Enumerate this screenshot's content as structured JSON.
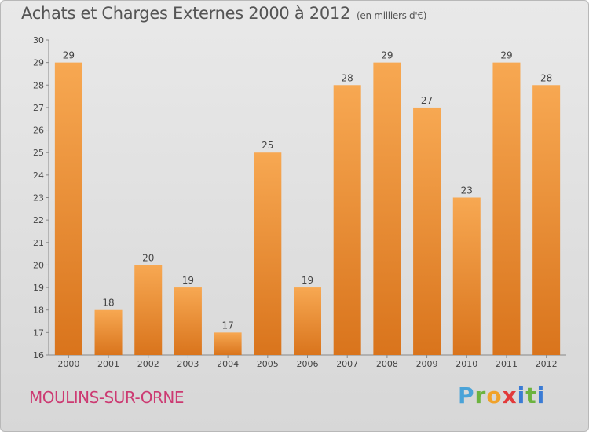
{
  "header": {
    "title": "Achats et Charges Externes 2000 à 2012",
    "unit": "(en milliers d'€)"
  },
  "footer": {
    "commune": "MOULINS-SUR-ORNE",
    "logo": [
      "P",
      "r",
      "o",
      "x",
      "i",
      "t",
      "i"
    ]
  },
  "colors": {
    "bar_top": "#f7a852",
    "bar_bottom": "#d9741c",
    "commune": "#cc3a72"
  },
  "chart_data": {
    "type": "bar",
    "title": "Achats et Charges Externes 2000 à 2012",
    "subtitle": "(en milliers d'€)",
    "categories": [
      "2000",
      "2001",
      "2002",
      "2003",
      "2004",
      "2005",
      "2006",
      "2007",
      "2008",
      "2009",
      "2010",
      "2011",
      "2012"
    ],
    "values": [
      29,
      18,
      20,
      19,
      17,
      25,
      19,
      28,
      29,
      27,
      23,
      29,
      28
    ],
    "ylim": [
      16,
      30
    ],
    "yticks": [
      16,
      17,
      18,
      19,
      20,
      21,
      22,
      23,
      24,
      25,
      26,
      27,
      28,
      29,
      30
    ],
    "grid": false,
    "xlabel": "",
    "ylabel": ""
  }
}
